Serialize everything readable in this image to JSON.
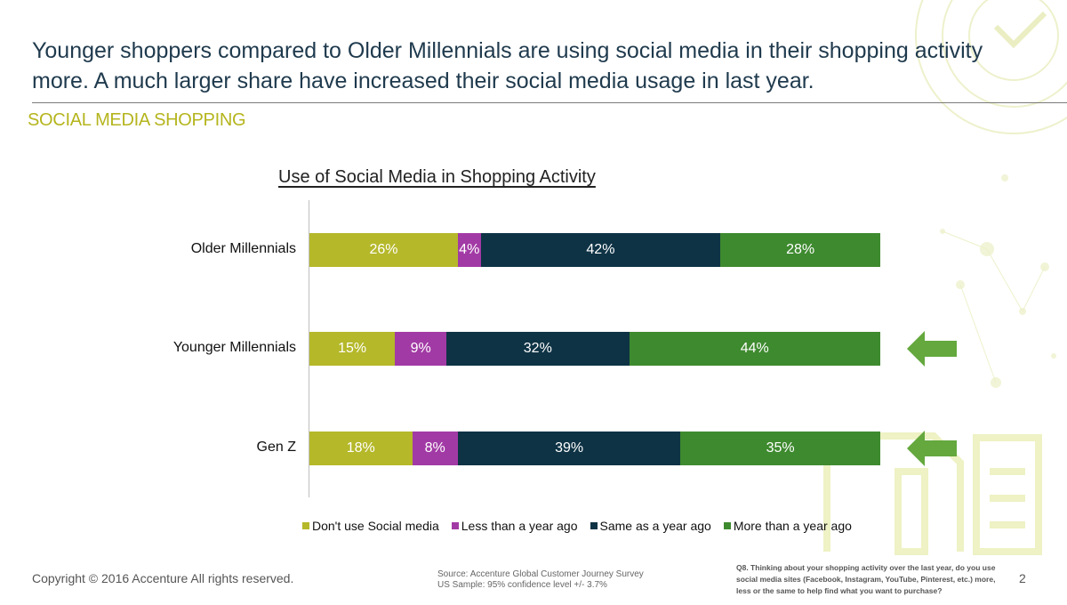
{
  "headline": "Younger shoppers compared to Older Millennials are using social media  in their shopping activity more.  A much larger share have increased their social media usage in last year.",
  "section_label": "SOCIAL MEDIA SHOPPING",
  "colors": {
    "dont_use": "#b5b829",
    "less_than_year": "#a23aa5",
    "same_as_year": "#0e3345",
    "more_than_year": "#3e8a2f",
    "arrow": "#64a83e",
    "section_label": "#b5b51f"
  },
  "chart_data": {
    "type": "bar",
    "orientation": "horizontal",
    "stacked": true,
    "percent_stacked": true,
    "title": "Use of Social Media in Shopping Activity",
    "categories": [
      "Older Millennials",
      "Younger Millennials",
      "Gen Z"
    ],
    "series": [
      {
        "name": "Don't use Social media",
        "values": [
          26,
          15,
          18
        ],
        "labels": [
          "26%",
          "15%",
          "18%"
        ]
      },
      {
        "name": "Less than a year ago",
        "values": [
          4,
          9,
          8
        ],
        "labels": [
          "4%",
          "9%",
          "8%"
        ]
      },
      {
        "name": "Same as a year ago",
        "values": [
          42,
          32,
          39
        ],
        "labels": [
          "42%",
          "32%",
          "39%"
        ]
      },
      {
        "name": "More than a year ago",
        "values": [
          28,
          44,
          35
        ],
        "labels": [
          "28%",
          "44%",
          "35%"
        ]
      }
    ],
    "xlim": [
      0,
      100
    ],
    "grid": false,
    "legend_position": "bottom",
    "highlighted_categories": [
      "Younger Millennials",
      "Gen Z"
    ]
  },
  "footer": {
    "copyright": "Copyright © 2016 Accenture  All rights reserved.",
    "source_line1": "Source: Accenture Global Customer Journey Survey",
    "source_line2": "US Sample:  95% confidence level +/- 3.7%",
    "question": "Q8.  Thinking about your shopping activity over the last year, do you use social media sites (Facebook, Instagram, YouTube, Pinterest, etc.) more, less or the same to help find what you want to purchase?",
    "page_number": "2"
  }
}
